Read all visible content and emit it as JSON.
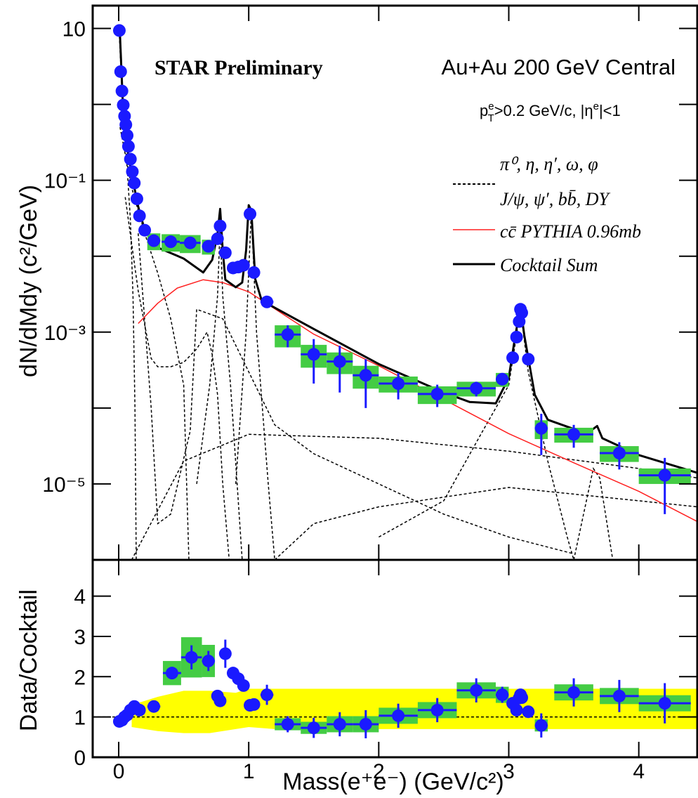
{
  "chart_data": [
    {
      "type": "scatter",
      "title": "STAR Preliminary",
      "subtitle": "Au+Au 200 GeV Central",
      "cuts": [
        "p",
        "e",
        "T",
        ">0.2 GeV/c, |η",
        "e",
        "|<1"
      ],
      "ylabel": "dN/dMdy (c²/GeV)",
      "xlim": [
        -0.2,
        4.45
      ],
      "ylim": [
        1e-06,
        20
      ],
      "log_y": true,
      "yticks": [
        10,
        {
          "value": 0.1,
          "label": "10⁻¹"
        },
        {
          "value": 0.001,
          "label": "10⁻³"
        },
        {
          "value": 1e-05,
          "label": "10⁻⁵"
        }
      ],
      "minor_yticks": [
        1,
        0.01,
        0.0001
      ],
      "points": {
        "color": "#1a1aff",
        "bar_color": "#1a1aff",
        "box_color": "#44cc44",
        "x": [
          0.005,
          0.015,
          0.025,
          0.035,
          0.045,
          0.055,
          0.065,
          0.075,
          0.09,
          0.105,
          0.12,
          0.14,
          0.16,
          0.2,
          0.27,
          0.4,
          0.55,
          0.69,
          0.76,
          0.78,
          0.82,
          0.88,
          0.92,
          0.96,
          1.01,
          1.04,
          1.14,
          1.3,
          1.5,
          1.7,
          1.9,
          2.15,
          2.45,
          2.75,
          2.95,
          3.03,
          3.06,
          3.08,
          3.09,
          3.1,
          3.15,
          3.25,
          3.5,
          3.85,
          4.2
        ],
        "values": [
          9.4,
          2.7,
          1.5,
          0.98,
          0.7,
          0.54,
          0.39,
          0.28,
          0.19,
          0.13,
          0.092,
          0.057,
          0.034,
          0.022,
          0.016,
          0.0155,
          0.015,
          0.0135,
          0.017,
          0.025,
          0.0111,
          0.007,
          0.0072,
          0.0076,
          0.036,
          0.0061,
          0.0025,
          0.00093,
          0.00051,
          0.00041,
          0.00027,
          0.00021,
          0.000153,
          0.000182,
          0.00024,
          0.00046,
          0.00086,
          0.00138,
          0.002,
          0.0018,
          0.00044,
          5.4e-05,
          4.5e-05,
          2.55e-05,
          1.3e-05
        ],
        "xerr": [
          0,
          0,
          0,
          0,
          0,
          0,
          0,
          0,
          0,
          0,
          0,
          0,
          0,
          0,
          0.05,
          0.07,
          0.08,
          0.05,
          0,
          0,
          0,
          0,
          0,
          0,
          0,
          0,
          0.05,
          0.1,
          0.1,
          0.1,
          0.1,
          0.15,
          0.15,
          0.15,
          0.05,
          0,
          0,
          0,
          0,
          0,
          0,
          0.05,
          0.15,
          0.15,
          0.2
        ],
        "yerr": [
          null,
          null,
          null,
          null,
          null,
          null,
          null,
          null,
          null,
          null,
          null,
          null,
          null,
          null,
          null,
          null,
          null,
          null,
          null,
          null,
          null,
          null,
          null,
          null,
          null,
          null,
          null,
          0.0003,
          0.0003,
          0.00025,
          0.00017,
          8e-05,
          5e-05,
          4e-05,
          null,
          null,
          null,
          null,
          null,
          null,
          null,
          3e-05,
          1.5e-05,
          1e-05,
          9e-06
        ],
        "syst": [
          null,
          null,
          null,
          null,
          null,
          null,
          null,
          null,
          null,
          null,
          null,
          null,
          null,
          null,
          0.004,
          0.004,
          0.004,
          0.003,
          null,
          null,
          null,
          null,
          null,
          null,
          null,
          null,
          null,
          0.0003,
          0.00017,
          0.00013,
          9e-05,
          5e-05,
          4e-05,
          4e-05,
          5e-05,
          null,
          null,
          null,
          null,
          null,
          null,
          1.5e-05,
          1e-05,
          6e-06,
          3e-06
        ]
      },
      "curves": [
        {
          "name": "cc̄ PYTHIA 0.96mb",
          "color": "#ff2020",
          "width": 1.5,
          "x": [
            0.15,
            0.3,
            0.45,
            0.65,
            0.8,
            1.0,
            1.5,
            2.0,
            2.5,
            3.0,
            3.5,
            4.0,
            4.45
          ],
          "values": [
            0.0013,
            0.0024,
            0.0038,
            0.0049,
            0.0045,
            0.0034,
            0.00094,
            0.00036,
            0.00013,
            4.6e-05,
            1.9e-05,
            8e-06,
            3.2e-06
          ]
        },
        {
          "name": "Cocktail Sum",
          "color": "#000000",
          "width": 3,
          "x": [
            0.0,
            0.01,
            0.03,
            0.06,
            0.1,
            0.15,
            0.2,
            0.3,
            0.5,
            0.65,
            0.72,
            0.76,
            0.78,
            0.8,
            0.82,
            0.9,
            0.95,
            0.98,
            1.0,
            1.02,
            1.05,
            1.1,
            1.5,
            2.0,
            2.5,
            2.7,
            2.9,
            3.0,
            3.05,
            3.09,
            3.12,
            3.2,
            3.3,
            3.6,
            3.68,
            3.72,
            4.0,
            4.45
          ],
          "values": [
            10,
            8,
            1.2,
            0.3,
            0.12,
            0.045,
            0.022,
            0.013,
            0.0093,
            0.0061,
            0.009,
            0.02,
            0.042,
            0.012,
            0.0049,
            0.0039,
            0.0045,
            0.012,
            0.047,
            0.04,
            0.005,
            0.0026,
            0.0011,
            0.00038,
            0.00016,
            0.00012,
            0.000115,
            0.00025,
            0.0009,
            0.0021,
            0.0009,
            0.00015,
            7e-05,
            4.6e-05,
            5.8e-05,
            4e-05,
            2.4e-05,
            1.4e-05
          ]
        }
      ],
      "components": {
        "names": [
          "π⁰, η, η′, ω, φ",
          "J/ψ, ψ′, bb̄, DY"
        ],
        "color": "#000000",
        "curves": [
          {
            "x": [
              0.005,
              0.03,
              0.06,
              0.09,
              0.11,
              0.125,
              0.135
            ],
            "values": [
              8,
              1,
              0.2,
              0.03,
              0.003,
              0.0001,
              1e-06
            ]
          },
          {
            "x": [
              0.01,
              0.1,
              0.2,
              0.3,
              0.4,
              0.5,
              0.54
            ],
            "values": [
              0.5,
              0.08,
              0.02,
              0.006,
              0.0015,
              0.0002,
              1e-06
            ]
          },
          {
            "x": [
              0.05,
              0.15,
              0.25,
              0.3,
              0.4,
              0.5,
              0.6,
              0.68,
              0.72,
              0.76,
              0.8,
              0.85
            ],
            "values": [
              0.06,
              0.0035,
              0.00045,
              0.00035,
              0.00035,
              0.0004,
              0.0006,
              0.001,
              0.0005,
              0.00015,
              1e-05,
              1e-06
            ]
          },
          {
            "x": [
              0.6,
              0.7,
              0.76,
              0.78,
              0.8,
              0.86,
              0.95
            ],
            "values": [
              1e-05,
              0.0002,
              0.003,
              0.025,
              0.003,
              0.0002,
              1e-06
            ]
          },
          {
            "x": [
              0.9,
              0.98,
              1.02,
              1.06,
              1.15,
              1.2
            ],
            "values": [
              1e-05,
              0.001,
              0.04,
              0.001,
              1e-05,
              1e-06
            ]
          },
          {
            "x": [
              0.15,
              0.25,
              0.3,
              0.4,
              0.55,
              0.6,
              0.8,
              1.0,
              1.2,
              1.5,
              2.0,
              2.5,
              3.0,
              3.5
            ],
            "values": [
              0.02,
              0.0001,
              3e-06,
              4e-06,
              5e-05,
              0.002,
              0.0015,
              0.0003,
              6e-05,
              2.5e-05,
              1e-05,
              4e-06,
              2e-06,
              1.2e-06
            ]
          },
          {
            "x": [
              2.0,
              2.5,
              2.8,
              3.0,
              3.09,
              3.15,
              3.3,
              3.45,
              3.5
            ],
            "values": [
              2e-06,
              6e-06,
              5e-05,
              0.0002,
              0.002,
              0.0003,
              2e-05,
              2e-06,
              1e-06
            ]
          },
          {
            "x": [
              3.5,
              3.65,
              3.7,
              3.8
            ],
            "values": [
              1e-06,
              1.6e-05,
              1.2e-05,
              1e-06
            ]
          },
          {
            "x": [
              0.1,
              0.5,
              1.0,
              2.0,
              3.0,
              4.0,
              4.45
            ],
            "values": [
              1e-06,
              2e-05,
              4.5e-05,
              4e-05,
              2.7e-05,
              1.6e-05,
              1.2e-05
            ]
          },
          {
            "x": [
              1.2,
              1.5,
              2.0,
              3.0,
              4.0,
              4.45
            ],
            "values": [
              1e-06,
              3e-06,
              5e-06,
              9e-06,
              6e-06,
              5e-06
            ]
          }
        ]
      }
    },
    {
      "type": "scatter",
      "xlabel": "Mass(e⁺e⁻) (GeV/c²)",
      "ylabel": "Data/Cocktail",
      "xlim": [
        -0.2,
        4.45
      ],
      "ylim": [
        0,
        4.9
      ],
      "xticks": [
        0,
        1,
        2,
        3,
        4
      ],
      "yticks": [
        0,
        1,
        2,
        3,
        4
      ],
      "ref_line": 1,
      "band": {
        "color": "#ffff00",
        "x": [
          0.1,
          0.3,
          0.5,
          0.7,
          0.9,
          1.0,
          1.2,
          4.45
        ],
        "lower": [
          0.75,
          0.65,
          0.6,
          0.6,
          0.7,
          0.75,
          0.7,
          0.7
        ],
        "upper": [
          1.3,
          1.5,
          1.65,
          1.65,
          1.6,
          1.7,
          1.7,
          1.7
        ]
      },
      "points": {
        "color": "#1a1aff",
        "bar_color": "#1a1aff",
        "box_color": "#44cc44",
        "x": [
          0.005,
          0.025,
          0.045,
          0.065,
          0.09,
          0.12,
          0.16,
          0.27,
          0.41,
          0.56,
          0.69,
          0.76,
          0.78,
          0.82,
          0.88,
          0.92,
          0.96,
          1.01,
          1.04,
          1.14,
          1.3,
          1.5,
          1.7,
          1.9,
          2.15,
          2.45,
          2.75,
          2.95,
          3.03,
          3.06,
          3.08,
          3.09,
          3.1,
          3.15,
          3.25,
          3.5,
          3.85,
          4.2
        ],
        "values": [
          0.89,
          0.92,
          1.0,
          1.05,
          1.17,
          1.26,
          1.17,
          1.26,
          2.09,
          2.48,
          2.39,
          1.52,
          1.4,
          2.57,
          2.09,
          1.95,
          1.78,
          1.29,
          1.31,
          1.55,
          0.82,
          0.73,
          0.82,
          0.82,
          1.03,
          1.17,
          1.66,
          1.55,
          1.34,
          1.17,
          1.47,
          1.55,
          1.48,
          1.13,
          0.79,
          1.61,
          1.52,
          1.34
        ],
        "xerr": [
          0,
          0,
          0,
          0,
          0,
          0,
          0,
          0.05,
          0.07,
          0.08,
          0.05,
          0,
          0,
          0,
          0,
          0,
          0,
          0,
          0,
          0.05,
          0.1,
          0.1,
          0.1,
          0.1,
          0.15,
          0.15,
          0.15,
          0.05,
          0,
          0,
          0,
          0,
          0,
          0,
          0.05,
          0.15,
          0.15,
          0.2
        ],
        "yerr": [
          null,
          null,
          null,
          null,
          null,
          null,
          null,
          null,
          null,
          0.3,
          0.25,
          null,
          null,
          0.35,
          null,
          null,
          null,
          null,
          null,
          0.25,
          0.2,
          0.25,
          0.3,
          0.35,
          0.3,
          0.3,
          0.3,
          0.2,
          null,
          null,
          null,
          null,
          null,
          null,
          0.3,
          0.35,
          0.4,
          0.5
        ],
        "syst": [
          null,
          null,
          null,
          null,
          null,
          null,
          null,
          null,
          0.3,
          0.5,
          0.4,
          null,
          null,
          null,
          null,
          null,
          null,
          null,
          null,
          null,
          0.15,
          0.15,
          0.2,
          0.2,
          0.2,
          0.2,
          0.2,
          0.2,
          null,
          null,
          null,
          null,
          null,
          null,
          0.15,
          0.2,
          0.2,
          0.2
        ]
      }
    }
  ]
}
